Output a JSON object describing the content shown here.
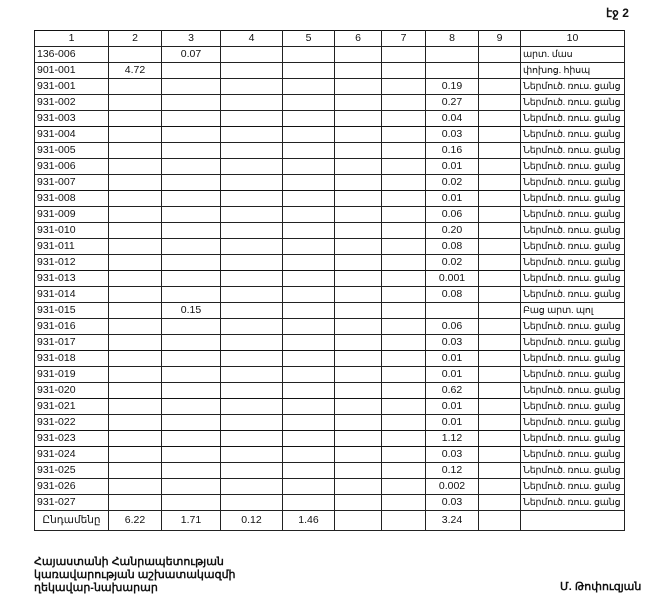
{
  "page_label": "էջ 2",
  "table": {
    "headers": [
      "1",
      "2",
      "3",
      "4",
      "5",
      "6",
      "7",
      "8",
      "9",
      "10"
    ],
    "rows": [
      {
        "code": "136-006",
        "c2": "",
        "c3": "0.07",
        "c8": "",
        "desc": "արտ. մաս"
      },
      {
        "code": "901-001",
        "c2": "4.72",
        "c3": "",
        "c8": "",
        "desc": "փոխոց. հիսպ"
      },
      {
        "code": "931-001",
        "c2": "",
        "c3": "",
        "c8": "0.19",
        "desc": "Ներմուծ. ռուս. ցանց"
      },
      {
        "code": "931-002",
        "c2": "",
        "c3": "",
        "c8": "0.27",
        "desc": "Ներմուծ. ռուս. ցանց"
      },
      {
        "code": "931-003",
        "c2": "",
        "c3": "",
        "c8": "0.04",
        "desc": "Ներմուծ. ռուս. ցանց"
      },
      {
        "code": "931-004",
        "c2": "",
        "c3": "",
        "c8": "0.03",
        "desc": "Ներմուծ. ռուս. ցանց"
      },
      {
        "code": "931-005",
        "c2": "",
        "c3": "",
        "c8": "0.16",
        "desc": "Ներմուծ. ռուս. ցանց"
      },
      {
        "code": "931-006",
        "c2": "",
        "c3": "",
        "c8": "0.01",
        "desc": "Ներմուծ. ռուս. ցանց"
      },
      {
        "code": "931-007",
        "c2": "",
        "c3": "",
        "c8": "0.02",
        "desc": "Ներմուծ. ռուս. ցանց"
      },
      {
        "code": "931-008",
        "c2": "",
        "c3": "",
        "c8": "0.01",
        "desc": "Ներմուծ. ռուս. ցանց"
      },
      {
        "code": "931-009",
        "c2": "",
        "c3": "",
        "c8": "0.06",
        "desc": "Ներմուծ. ռուս. ցանց"
      },
      {
        "code": "931-010",
        "c2": "",
        "c3": "",
        "c8": "0.20",
        "desc": "Ներմուծ. ռուս. ցանց"
      },
      {
        "code": "931-011",
        "c2": "",
        "c3": "",
        "c8": "0.08",
        "desc": "Ներմուծ. ռուս. ցանց"
      },
      {
        "code": "931-012",
        "c2": "",
        "c3": "",
        "c8": "0.02",
        "desc": "Ներմուծ. ռուս. ցանց"
      },
      {
        "code": "931-013",
        "c2": "",
        "c3": "",
        "c8": "0.001",
        "desc": "Ներմուծ. ռուս. ցանց"
      },
      {
        "code": "931-014",
        "c2": "",
        "c3": "",
        "c8": "0.08",
        "desc": "Ներմուծ. ռուս. ցանց"
      },
      {
        "code": "931-015",
        "c2": "",
        "c3": "0.15",
        "c8": "",
        "desc": "Բաց արտ. պոլ"
      },
      {
        "code": "931-016",
        "c2": "",
        "c3": "",
        "c8": "0.06",
        "desc": "Ներմուծ. ռուս. ցանց"
      },
      {
        "code": "931-017",
        "c2": "",
        "c3": "",
        "c8": "0.03",
        "desc": "Ներմուծ. ռուս. ցանց"
      },
      {
        "code": "931-018",
        "c2": "",
        "c3": "",
        "c8": "0.01",
        "desc": "Ներմուծ. ռուս. ցանց"
      },
      {
        "code": "931-019",
        "c2": "",
        "c3": "",
        "c8": "0.01",
        "desc": "Ներմուծ. ռուս. ցանց"
      },
      {
        "code": "931-020",
        "c2": "",
        "c3": "",
        "c8": "0.62",
        "desc": "Ներմուծ. ռուս. ցանց"
      },
      {
        "code": "931-021",
        "c2": "",
        "c3": "",
        "c8": "0.01",
        "desc": "Ներմուծ. ռուս. ցանց"
      },
      {
        "code": "931-022",
        "c2": "",
        "c3": "",
        "c8": "0.01",
        "desc": "Ներմուծ. ռուս. ցանց"
      },
      {
        "code": "931-023",
        "c2": "",
        "c3": "",
        "c8": "1.12",
        "desc": "Ներմուծ. ռուս. ցանց"
      },
      {
        "code": "931-024",
        "c2": "",
        "c3": "",
        "c8": "0.03",
        "desc": "Ներմուծ. ռուս. ցանց"
      },
      {
        "code": "931-025",
        "c2": "",
        "c3": "",
        "c8": "0.12",
        "desc": "Ներմուծ. ռուս. ցանց"
      },
      {
        "code": "931-026",
        "c2": "",
        "c3": "",
        "c8": "0.002",
        "desc": "Ներմուծ. ռուս. ցանց"
      },
      {
        "code": "931-027",
        "c2": "",
        "c3": "",
        "c8": "0.03",
        "desc": "Ներմուծ. ռուս. ցանց"
      }
    ],
    "total": {
      "label": "Ընդամենը",
      "c2": "6.22",
      "c3": "1.71",
      "c4": "0.12",
      "c5": "1.46",
      "c8": "3.24"
    }
  },
  "footer": {
    "title_lines": [
      "Հայաստանի Հանրապետության",
      "կառավարության աշխատակազմի",
      "ղեկավար-նախարար"
    ],
    "signatory": "Մ. Թոփուզյան"
  }
}
